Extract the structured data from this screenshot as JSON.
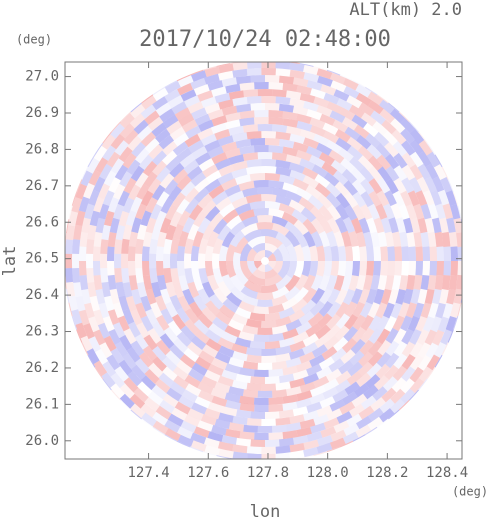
{
  "chart_data": {
    "type": "radar-field",
    "title": "2017/10/24 02:48:00",
    "annotation": "ALT(km) 2.0",
    "x_label": "lon",
    "x_unit": "(deg)",
    "y_label": "lat",
    "y_unit": "(deg)",
    "xlim": [
      127.12,
      128.45
    ],
    "ylim": [
      25.95,
      27.04
    ],
    "xticks": [
      127.4,
      127.6,
      127.8,
      {
        "value": 128.0,
        "label": "128.0"
      },
      128.2,
      128.4
    ],
    "yticks": [
      {
        "value": 26.0,
        "label": "26.0"
      },
      26.1,
      26.2,
      26.3,
      26.4,
      26.5,
      26.6,
      26.7,
      26.8,
      26.9,
      {
        "value": 27.0,
        "label": "27.0"
      }
    ]
  }
}
